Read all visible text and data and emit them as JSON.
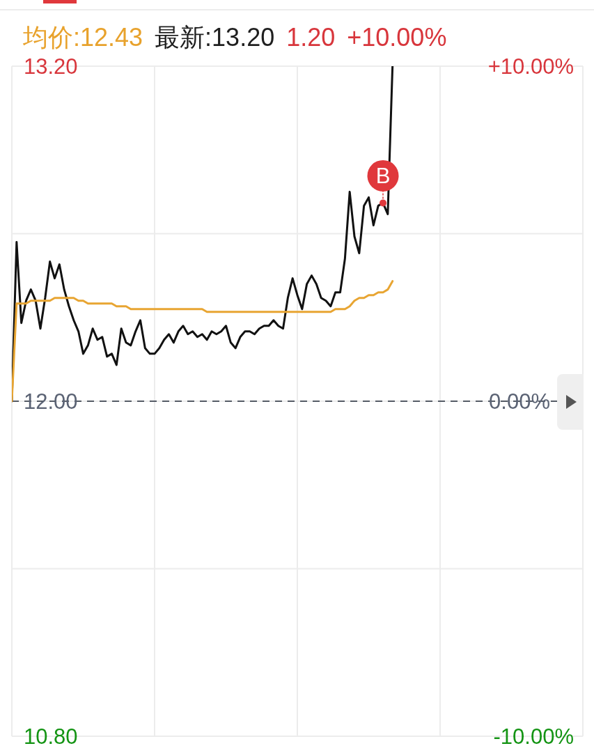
{
  "chart_data": {
    "type": "line",
    "annotations": [
      "均价:12.43",
      "最新:13.20",
      "1.20",
      "+10.00%"
    ],
    "categories": [
      null,
      null,
      null,
      null,
      null,
      null,
      null,
      null,
      null,
      null,
      null,
      null,
      null,
      null,
      null,
      null,
      null,
      null,
      null,
      null,
      null,
      null,
      null,
      null,
      null,
      null,
      null,
      null,
      null,
      null,
      null,
      null,
      null,
      null,
      null,
      null,
      null,
      null,
      null,
      null,
      null,
      null,
      null,
      null,
      null,
      null,
      null,
      null,
      null,
      null,
      null,
      null,
      null,
      null,
      null,
      null,
      null,
      null,
      null,
      null,
      null,
      null,
      null,
      null,
      null,
      null,
      null,
      null,
      null,
      null,
      null,
      null,
      null,
      null,
      null,
      null,
      null,
      null,
      null,
      null,
      null,
      null,
      null,
      null,
      null,
      null,
      null,
      null,
      null,
      null,
      null,
      null,
      null,
      null,
      null,
      null,
      null,
      null,
      null,
      null,
      null,
      null,
      null,
      null,
      null,
      null,
      null,
      null,
      null,
      null,
      null,
      null,
      null,
      null,
      null,
      null,
      null,
      null,
      null,
      null,
      null
    ],
    "series": [
      {
        "type": "line",
        "color": "#111111",
        "values": [
          12,
          12.57,
          12.28,
          12.36,
          12.4,
          12.36,
          12.26,
          12.37,
          12.5,
          12.44,
          12.49,
          12.4,
          12.34,
          12.29,
          12.25,
          12.17,
          12.2,
          12.26,
          12.22,
          12.23,
          12.16,
          12.17,
          12.13,
          12.26,
          12.21,
          12.2,
          12.25,
          12.29,
          12.19,
          12.17,
          12.17,
          12.19,
          12.22,
          12.24,
          12.21,
          12.25,
          12.27,
          12.24,
          12.25,
          12.23,
          12.24,
          12.22,
          12.25,
          12.24,
          12.25,
          12.27,
          12.21,
          12.19,
          12.23,
          12.25,
          12.25,
          12.24,
          12.26,
          12.27,
          12.27,
          12.29,
          12.27,
          12.26,
          12.37,
          12.44,
          12.38,
          12.33,
          12.42,
          12.45,
          12.42,
          12.37,
          12.36,
          12.34,
          12.39,
          12.39,
          12.51,
          12.75,
          12.59,
          12.53,
          12.7,
          12.73,
          12.63,
          12.7,
          12.71,
          12.67,
          13.2,
          null,
          null,
          null,
          null,
          null,
          null,
          null,
          null,
          null,
          null,
          null,
          null,
          null,
          null,
          null,
          null,
          null,
          null,
          null,
          null,
          null,
          null,
          null,
          null,
          null,
          null,
          null,
          null,
          null,
          null,
          null,
          null,
          null,
          null,
          null,
          null,
          null,
          null,
          null,
          null
        ]
      },
      {
        "type": "line",
        "color": "#e8a532",
        "values": [
          12,
          12.35,
          12.35,
          12.35,
          12.36,
          12.36,
          12.36,
          12.36,
          12.36,
          12.37,
          12.37,
          12.37,
          12.37,
          12.37,
          12.36,
          12.36,
          12.35,
          12.35,
          12.35,
          12.35,
          12.35,
          12.35,
          12.34,
          12.34,
          12.34,
          12.33,
          12.33,
          12.33,
          12.33,
          12.33,
          12.33,
          12.33,
          12.33,
          12.33,
          12.33,
          12.33,
          12.33,
          12.33,
          12.33,
          12.33,
          12.33,
          12.32,
          12.32,
          12.32,
          12.32,
          12.32,
          12.32,
          12.32,
          12.32,
          12.32,
          12.32,
          12.32,
          12.32,
          12.32,
          12.32,
          12.32,
          12.32,
          12.32,
          12.32,
          12.32,
          12.32,
          12.32,
          12.32,
          12.32,
          12.32,
          12.32,
          12.32,
          12.32,
          12.33,
          12.33,
          12.33,
          12.34,
          12.36,
          12.37,
          12.37,
          12.38,
          12.38,
          12.39,
          12.39,
          12.4,
          12.43,
          null,
          null,
          null,
          null,
          null,
          null,
          null,
          null,
          null,
          null,
          null,
          null,
          null,
          null,
          null,
          null,
          null,
          null,
          null,
          null,
          null,
          null,
          null,
          null,
          null,
          null,
          null,
          null,
          null,
          null,
          null,
          null,
          null,
          null,
          null,
          null,
          null,
          null,
          null,
          null
        ]
      },
      {
        "type": "scatter",
        "name": "B",
        "color": "#e0383c",
        "marker": "circle",
        "values": [
          null,
          null,
          null,
          null,
          null,
          null,
          null,
          null,
          null,
          null,
          null,
          null,
          null,
          null,
          null,
          null,
          null,
          null,
          null,
          null,
          null,
          null,
          null,
          null,
          null,
          null,
          null,
          null,
          null,
          null,
          null,
          null,
          null,
          null,
          null,
          null,
          null,
          null,
          null,
          null,
          null,
          null,
          null,
          null,
          null,
          null,
          null,
          null,
          null,
          null,
          null,
          null,
          null,
          null,
          null,
          null,
          null,
          null,
          null,
          null,
          null,
          null,
          null,
          null,
          null,
          null,
          null,
          null,
          null,
          null,
          null,
          null,
          null,
          null,
          null,
          null,
          null,
          null,
          12.71,
          null,
          null,
          null,
          null,
          null,
          null,
          null,
          null,
          null,
          null,
          null,
          null,
          null,
          null,
          null,
          null,
          null,
          null,
          null,
          null,
          null,
          null,
          null,
          null,
          null,
          null,
          null,
          null,
          null,
          null,
          null,
          null,
          null,
          null,
          null,
          null,
          null,
          null,
          null,
          null,
          null,
          null
        ]
      }
    ],
    "ylim": [
      10.8,
      13.2
    ],
    "yticks": [
      {
        "value": 13.2,
        "label": "13.20"
      },
      {
        "value": 12.6,
        "label": null
      },
      {
        "value": 12,
        "label": "12.00"
      },
      {
        "value": 11.4,
        "label": null
      },
      {
        "value": 10.8,
        "label": "10.80"
      }
    ],
    "y2lim": [
      -10,
      10
    ],
    "y2ticks": [
      {
        "value": 10,
        "label": "+10.00%"
      },
      {
        "value": 0,
        "label": "0.00%"
      },
      {
        "value": -10,
        "label": "-10.00%"
      }
    ],
    "ref_lines": [
      {
        "axis": "y",
        "value": 12,
        "color": "#555b66",
        "line_style": "dashed"
      }
    ],
    "grid": true
  }
}
